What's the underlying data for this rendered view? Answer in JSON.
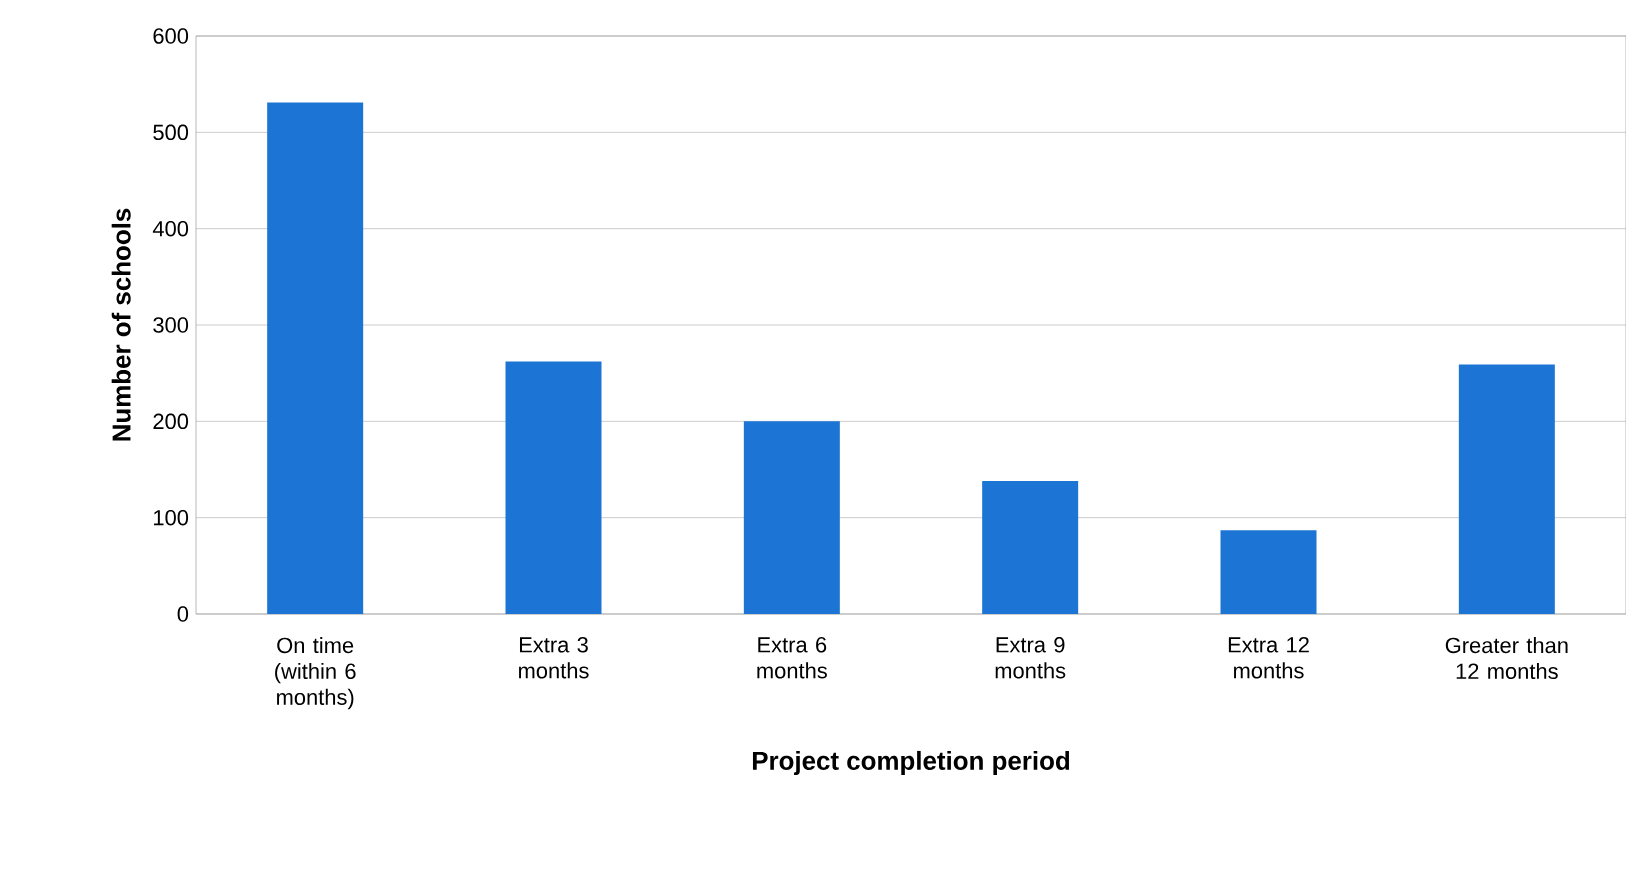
{
  "chart_data": {
    "type": "bar",
    "categories": [
      "On time (within 6 months)",
      "Extra 3 months",
      "Extra 6 months",
      "Extra 9 months",
      "Extra 12 months",
      "Greater than 12 months"
    ],
    "values": [
      531,
      262,
      200,
      138,
      87,
      259
    ],
    "color": "#1c75d4",
    "xlabel": "Project completion period",
    "ylabel": "Number of schools",
    "ylim": [
      0,
      600
    ],
    "yticks": [
      0,
      100,
      200,
      300,
      400,
      500,
      600
    ],
    "grid": "y"
  }
}
